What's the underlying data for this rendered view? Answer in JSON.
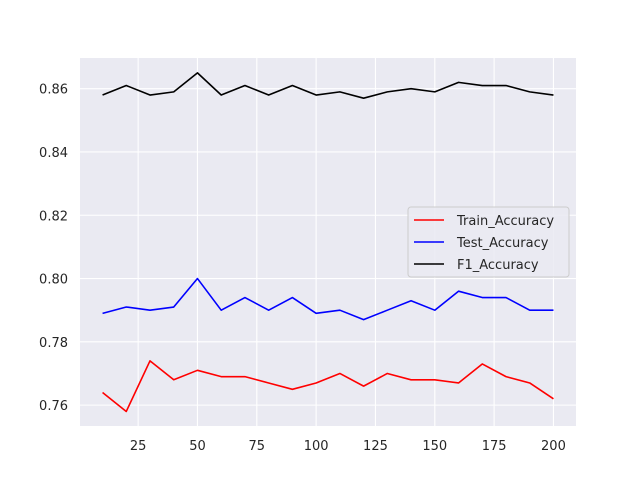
{
  "chart_data": {
    "type": "line",
    "title": "",
    "xlabel": "",
    "ylabel": "",
    "x": [
      10,
      20,
      30,
      40,
      50,
      60,
      70,
      80,
      90,
      100,
      110,
      120,
      130,
      140,
      150,
      160,
      170,
      180,
      190,
      200
    ],
    "xlim": [
      0.5,
      209.5
    ],
    "ylim": [
      0.7534,
      0.8697
    ],
    "xticks": [
      25,
      50,
      75,
      100,
      125,
      150,
      175,
      200
    ],
    "xtick_labels": [
      "25",
      "50",
      "75",
      "100",
      "125",
      "150",
      "175",
      "200"
    ],
    "yticks": [
      0.76,
      0.78,
      0.8,
      0.82,
      0.84,
      0.86
    ],
    "ytick_labels": [
      "0.76",
      "0.78",
      "0.80",
      "0.82",
      "0.84",
      "0.86"
    ],
    "grid": true,
    "legend_position": "center-right",
    "background_color": "#eaeaf2",
    "grid_color": "#ffffff",
    "series": [
      {
        "name": "Train_Accuracy",
        "color": "#ff0000",
        "values": [
          0.764,
          0.758,
          0.774,
          0.768,
          0.771,
          0.769,
          0.769,
          0.767,
          0.765,
          0.767,
          0.77,
          0.766,
          0.77,
          0.768,
          0.768,
          0.767,
          0.773,
          0.769,
          0.767,
          0.762
        ]
      },
      {
        "name": "Test_Accuracy",
        "color": "#0000ff",
        "values": [
          0.789,
          0.791,
          0.79,
          0.791,
          0.8,
          0.79,
          0.794,
          0.79,
          0.794,
          0.789,
          0.79,
          0.787,
          0.79,
          0.793,
          0.79,
          0.796,
          0.794,
          0.794,
          0.79,
          0.79
        ]
      },
      {
        "name": "F1_Accuracy",
        "color": "#000000",
        "values": [
          0.858,
          0.861,
          0.858,
          0.859,
          0.865,
          0.858,
          0.861,
          0.858,
          0.861,
          0.858,
          0.859,
          0.857,
          0.859,
          0.86,
          0.859,
          0.862,
          0.861,
          0.861,
          0.859,
          0.858
        ]
      }
    ]
  }
}
